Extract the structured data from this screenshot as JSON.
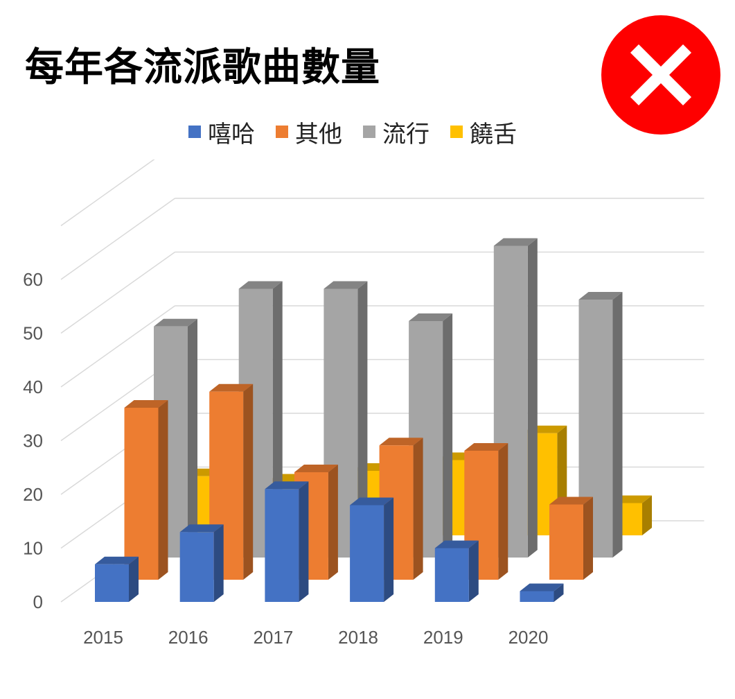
{
  "title": "每年各流派歌曲數量",
  "close_icon": "close-icon",
  "chart_data": {
    "type": "bar",
    "title": "每年各流派歌曲數量",
    "categories": [
      "2015",
      "2016",
      "2017",
      "2018",
      "2019",
      "2020"
    ],
    "series": [
      {
        "name": "嘻哈",
        "color": "#4472c4",
        "values": [
          7,
          13,
          21,
          18,
          10,
          2
        ]
      },
      {
        "name": "其他",
        "color": "#ed7d31",
        "values": [
          32,
          35,
          20,
          25,
          24,
          14
        ]
      },
      {
        "name": "流行",
        "color": "#a5a5a5",
        "values": [
          43,
          50,
          50,
          44,
          58,
          48
        ]
      },
      {
        "name": "饒舌",
        "color": "#ffc000",
        "values": [
          11,
          10,
          12,
          14,
          19,
          6
        ]
      }
    ],
    "y_ticks": [
      "0",
      "10",
      "20",
      "30",
      "40",
      "50",
      "60"
    ],
    "ylim": [
      0,
      70
    ],
    "legend_position": "top",
    "grid": true,
    "style": "3d-clustered-column"
  }
}
